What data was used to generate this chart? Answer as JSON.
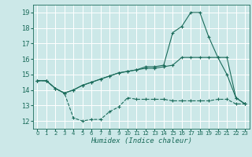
{
  "bg_color": "#cce8e8",
  "grid_color": "#aad4d4",
  "line_color": "#1a6b5a",
  "xlabel": "Humidex (Indice chaleur)",
  "xlim": [
    -0.5,
    23.5
  ],
  "ylim": [
    11.5,
    19.5
  ],
  "yticks": [
    12,
    13,
    14,
    15,
    16,
    17,
    18,
    19
  ],
  "xticks": [
    0,
    1,
    2,
    3,
    4,
    5,
    6,
    7,
    8,
    9,
    10,
    11,
    12,
    13,
    14,
    15,
    16,
    17,
    18,
    19,
    20,
    21,
    22,
    23
  ],
  "line1_x": [
    0,
    1,
    2,
    3,
    4,
    5,
    6,
    7,
    8,
    9,
    10,
    11,
    12,
    13,
    14,
    15,
    16,
    17,
    18,
    19,
    20,
    21,
    22,
    23
  ],
  "line1_y": [
    14.6,
    14.6,
    14.1,
    13.8,
    12.2,
    12.0,
    12.1,
    12.1,
    12.6,
    12.9,
    13.5,
    13.4,
    13.4,
    13.4,
    13.4,
    13.3,
    13.3,
    13.3,
    13.3,
    13.3,
    13.4,
    13.4,
    13.1,
    13.1
  ],
  "line2_x": [
    0,
    1,
    2,
    3,
    4,
    5,
    6,
    7,
    8,
    9,
    10,
    11,
    12,
    13,
    14,
    15,
    16,
    17,
    18,
    19,
    20,
    21,
    22,
    23
  ],
  "line2_y": [
    14.6,
    14.6,
    14.1,
    13.8,
    14.0,
    14.3,
    14.5,
    14.7,
    14.9,
    15.1,
    15.2,
    15.3,
    15.4,
    15.4,
    15.5,
    15.6,
    16.1,
    16.1,
    16.1,
    16.1,
    16.1,
    15.0,
    13.5,
    13.1
  ],
  "line3_x": [
    0,
    1,
    2,
    3,
    4,
    5,
    6,
    7,
    8,
    9,
    10,
    11,
    12,
    13,
    14,
    15,
    16,
    17,
    18,
    19,
    20,
    21,
    22,
    23
  ],
  "line3_y": [
    14.6,
    14.6,
    14.1,
    13.8,
    14.0,
    14.3,
    14.5,
    14.7,
    14.9,
    15.1,
    15.2,
    15.3,
    15.5,
    15.5,
    15.6,
    17.7,
    18.1,
    19.0,
    19.0,
    17.4,
    16.1,
    16.1,
    13.5,
    13.1
  ]
}
